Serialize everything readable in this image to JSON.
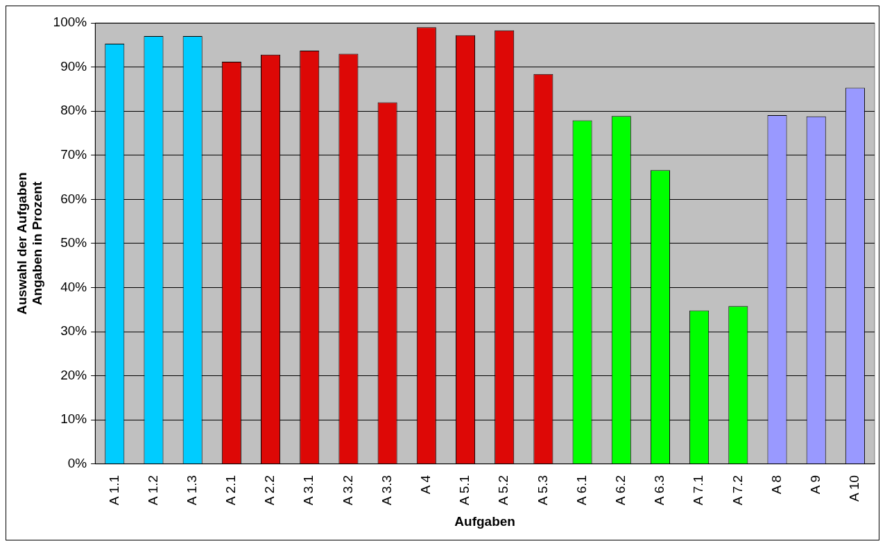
{
  "chart_data": {
    "type": "bar",
    "xlabel": "Aufgaben",
    "ylabel": "Auswahl der Aufgaben\nAngaben in Prozent",
    "categories": [
      "A 1.1",
      "A 1.2",
      "A 1.3",
      "A 2.1",
      "A 2.2",
      "A 3.1",
      "A 3.2",
      "A 3.3",
      "A 4",
      "A 5.1",
      "A 5.2",
      "A 5.3",
      "A 6.1",
      "A 6.2",
      "A 6.3",
      "A 7.1",
      "A 7.2",
      "A 8",
      "A 9",
      "A 10"
    ],
    "values": [
      95.3,
      97.0,
      97.0,
      91.2,
      92.8,
      93.7,
      93.0,
      82.0,
      99.0,
      97.2,
      98.3,
      88.4,
      77.9,
      78.9,
      66.6,
      34.8,
      35.8,
      79.1,
      78.8,
      85.3
    ],
    "colors": [
      "#00ccff",
      "#00ccff",
      "#00ccff",
      "#dd0806",
      "#dd0806",
      "#dd0806",
      "#dd0806",
      "#dd0806",
      "#dd0806",
      "#dd0806",
      "#dd0806",
      "#dd0806",
      "#00ff00",
      "#00ff00",
      "#00ff00",
      "#00ff00",
      "#00ff00",
      "#9999ff",
      "#9999ff",
      "#9999ff"
    ],
    "ylim": [
      0,
      100
    ],
    "yticks": [
      {
        "value": 0,
        "label": "0%"
      },
      {
        "value": 10,
        "label": "10%"
      },
      {
        "value": 20,
        "label": "20%"
      },
      {
        "value": 30,
        "label": "30%"
      },
      {
        "value": 40,
        "label": "40%"
      },
      {
        "value": 50,
        "label": "50%"
      },
      {
        "value": 60,
        "label": "60%"
      },
      {
        "value": 70,
        "label": "70%"
      },
      {
        "value": 80,
        "label": "80%"
      },
      {
        "value": 90,
        "label": "90%"
      },
      {
        "value": 100,
        "label": "100%"
      }
    ],
    "grid": "y",
    "legend": false
  }
}
